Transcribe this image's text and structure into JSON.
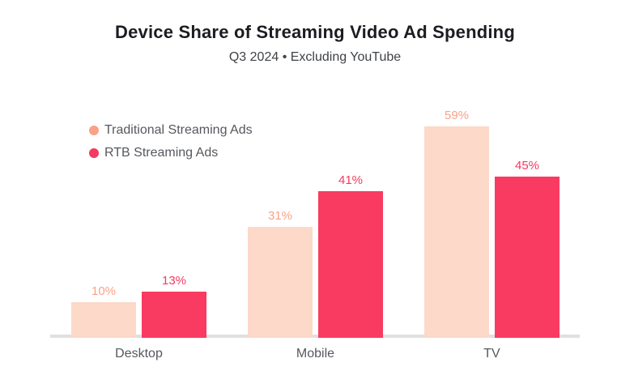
{
  "header": {
    "title": "Device Share of Streaming Video Ad Spending",
    "subtitle": "Q3 2024 • Excluding YouTube"
  },
  "legend": {
    "items": [
      {
        "label": "Traditional Streaming Ads",
        "color": "#f9a287"
      },
      {
        "label": "RTB Streaming Ads",
        "color": "#f43a60"
      }
    ]
  },
  "chart_data": {
    "type": "bar",
    "title": "Device Share of Streaming Video Ad Spending",
    "subtitle": "Q3 2024 • Excluding YouTube",
    "categories": [
      "Desktop",
      "Mobile",
      "TV"
    ],
    "series": [
      {
        "name": "Traditional Streaming Ads",
        "values": [
          10,
          31,
          59
        ],
        "bar_color": "#fcd9c9",
        "label_color": "#f9a287"
      },
      {
        "name": "RTB Streaming Ads",
        "values": [
          13,
          41,
          45
        ],
        "bar_color": "#f93b61",
        "label_color": "#f43a60"
      }
    ],
    "unit": "%",
    "value_labels": [
      [
        "10%",
        "31%",
        "59%"
      ],
      [
        "13%",
        "41%",
        "45%"
      ]
    ],
    "xlabel": "",
    "ylabel": "",
    "ylim": [
      0,
      62
    ],
    "grid": false,
    "y_axis_visible": false,
    "legend_position": "top-left",
    "baseline_color": "#e0e0e0",
    "background_color": "#ffffff"
  }
}
